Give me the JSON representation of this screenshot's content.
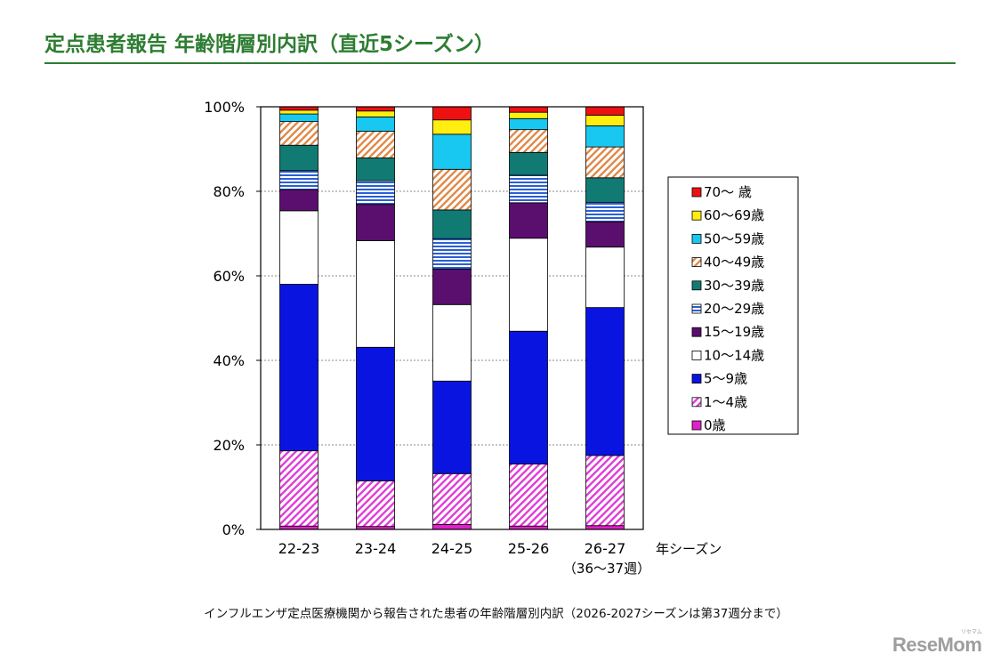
{
  "title": "定点患者報告 年齢階層別内訳（直近5シーズン）",
  "caption": "インフルエンザ定点医療機関から報告された患者の年齢階層別内訳（2026-2027シーズンは第37週分まで）",
  "logo": {
    "text": "ReseMom",
    "small_text": "リセマム"
  },
  "chart_data": {
    "type": "bar",
    "stacked": true,
    "categories": [
      "22-23",
      "23-24",
      "24-25",
      "25-26",
      "26-27"
    ],
    "category_sublabels": [
      "",
      "",
      "",
      "",
      "（36～37週）"
    ],
    "x_axis_suffix": "年シーズン",
    "ylim": [
      0,
      100
    ],
    "yticks": [
      0,
      20,
      40,
      60,
      80,
      100
    ],
    "ytick_labels": [
      "0%",
      "20%",
      "40%",
      "60%",
      "80%",
      "100%"
    ],
    "grid": true,
    "legend_position": "right",
    "series": [
      {
        "name": "0歳",
        "color": "#e020c8",
        "pattern": "solid",
        "values": [
          0.8,
          0.7,
          1.2,
          0.8,
          0.9
        ]
      },
      {
        "name": "1～4歳",
        "color": "#e040d8",
        "pattern": "diag",
        "values": [
          17.8,
          10.8,
          12.0,
          14.7,
          16.6
        ]
      },
      {
        "name": "5～9歳",
        "color": "#0a14e0",
        "pattern": "solid",
        "values": [
          39.4,
          31.6,
          21.9,
          31.4,
          35.0
        ]
      },
      {
        "name": "10～14歳",
        "color": "#ffffff",
        "pattern": "solid",
        "values": [
          17.4,
          25.2,
          18.1,
          22.0,
          14.3
        ]
      },
      {
        "name": "15～19歳",
        "color": "#5a0f6e",
        "pattern": "solid",
        "values": [
          5.0,
          8.6,
          8.4,
          8.4,
          6.0
        ]
      },
      {
        "name": "20～29歳",
        "color": "#2a5fd6",
        "pattern": "hstripe",
        "values": [
          4.5,
          5.6,
          7.2,
          6.5,
          4.6
        ]
      },
      {
        "name": "30～39歳",
        "color": "#117a73",
        "pattern": "solid",
        "values": [
          6.0,
          5.4,
          6.8,
          5.4,
          5.8
        ]
      },
      {
        "name": "40～49歳",
        "color": "#e08a4a",
        "pattern": "diag2",
        "values": [
          5.6,
          6.3,
          9.6,
          5.4,
          7.3
        ]
      },
      {
        "name": "50～59歳",
        "color": "#19c8f0",
        "pattern": "solid",
        "values": [
          1.8,
          3.4,
          8.3,
          2.6,
          5.0
        ]
      },
      {
        "name": "60～69歳",
        "color": "#ffee10",
        "pattern": "solid",
        "values": [
          0.9,
          1.4,
          3.4,
          1.5,
          2.5
        ]
      },
      {
        "name": "70～ 歳",
        "color": "#ee1111",
        "pattern": "solid",
        "values": [
          0.8,
          1.0,
          3.1,
          1.3,
          2.0
        ]
      }
    ]
  }
}
